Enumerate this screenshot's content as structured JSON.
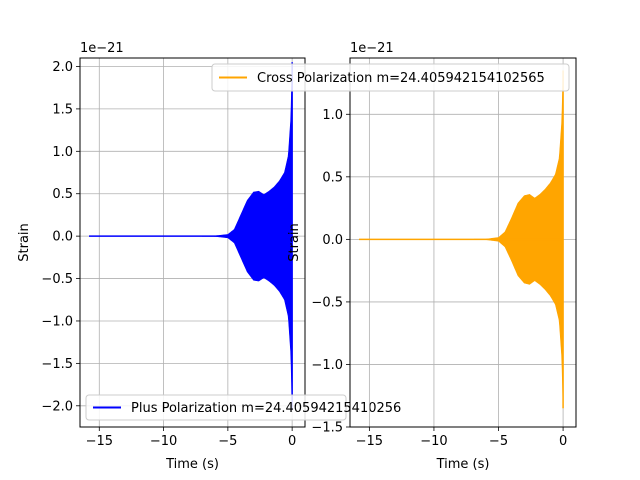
{
  "chart_data": [
    {
      "type": "line",
      "xlabel": "Time (s)",
      "ylabel": "Strain",
      "offset_label": "1e−21",
      "grid": true,
      "xlim": [
        -16.5,
        1.0
      ],
      "ylim": [
        -2.25,
        2.1
      ],
      "xticks": [
        -15,
        -10,
        -5,
        0
      ],
      "xtick_labels": [
        "−15",
        "−10",
        "−5",
        "0"
      ],
      "yticks": [
        -2.0,
        -1.5,
        -1.0,
        -0.5,
        0.0,
        0.5,
        1.0,
        1.5,
        2.0
      ],
      "ytick_labels": [
        "−2.0",
        "−1.5",
        "−1.0",
        "−0.5",
        "0.0",
        "0.5",
        "1.0",
        "1.5",
        "2.0"
      ],
      "legend_position": "lower-left",
      "series": [
        {
          "name": "Plus Polarization m=24.40594215410256",
          "color": "#0000ff",
          "envelope": {
            "t": [
              -15.8,
              -8.0,
              -6.0,
              -5.0,
              -4.5,
              -4.0,
              -3.5,
              -3.0,
              -2.6,
              -2.2,
              -1.8,
              -1.4,
              -1.0,
              -0.6,
              -0.3,
              -0.1,
              0.0
            ],
            "amp": [
              0.0,
              0.0,
              0.003,
              0.02,
              0.08,
              0.25,
              0.42,
              0.52,
              0.53,
              0.49,
              0.53,
              0.58,
              0.65,
              0.75,
              0.95,
              1.4,
              2.05
            ]
          }
        }
      ]
    },
    {
      "type": "line",
      "xlabel": "Time (s)",
      "ylabel": "Strain",
      "offset_label": "1e−21",
      "grid": true,
      "xlim": [
        -16.5,
        1.0
      ],
      "ylim": [
        -1.5,
        1.45
      ],
      "xticks": [
        -15,
        -10,
        -5,
        0
      ],
      "xtick_labels": [
        "−15",
        "−10",
        "−5",
        "0"
      ],
      "yticks": [
        -1.5,
        -1.0,
        -0.5,
        0.0,
        0.5,
        1.0
      ],
      "ytick_labels": [
        "−1.5",
        "−1.0",
        "−0.5",
        "0.0",
        "0.5",
        "1.0"
      ],
      "legend_position": "upper-right",
      "series": [
        {
          "name": "Cross Polarization m=24.405942154102565",
          "color": "#ffa500",
          "envelope": {
            "t": [
              -15.8,
              -8.0,
              -6.0,
              -5.0,
              -4.5,
              -4.0,
              -3.5,
              -3.0,
              -2.6,
              -2.2,
              -1.8,
              -1.4,
              -1.0,
              -0.6,
              -0.3,
              -0.1,
              0.0
            ],
            "amp": [
              0.0,
              0.0,
              0.002,
              0.015,
              0.06,
              0.17,
              0.29,
              0.35,
              0.36,
              0.33,
              0.36,
              0.4,
              0.45,
              0.52,
              0.65,
              0.95,
              1.35
            ]
          }
        }
      ]
    }
  ]
}
